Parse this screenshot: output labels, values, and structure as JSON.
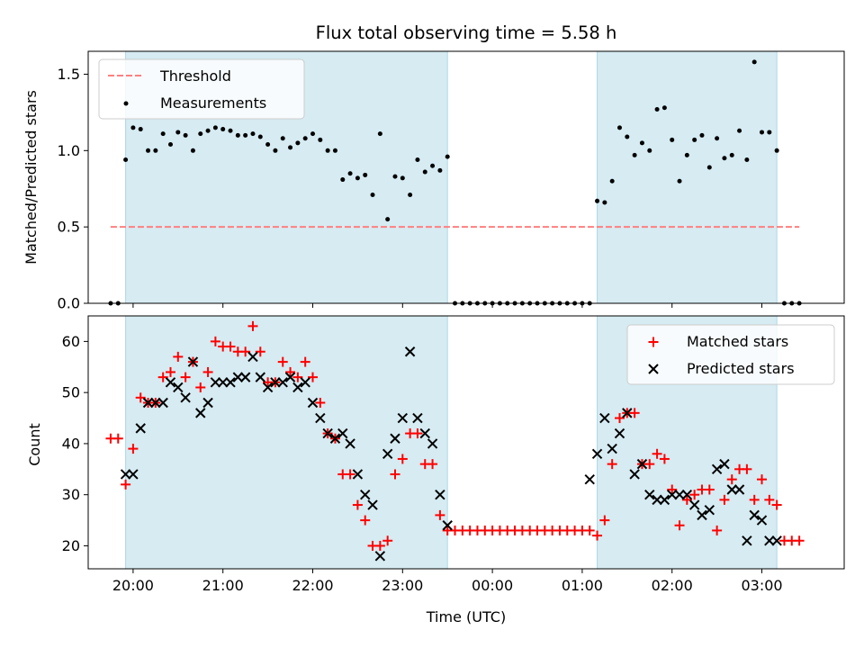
{
  "chart_data": [
    {
      "type": "scatter",
      "title": "Flux total observing time = 5.58 h",
      "xlabel": "",
      "ylabel": "Matched/Predicted stars",
      "ylim": [
        0.0,
        1.65
      ],
      "xlim": [
        "19:30",
        "03:55"
      ],
      "yticks": [
        0.0,
        0.5,
        1.0,
        1.5
      ],
      "ytick_labels": [
        "0.0",
        "0.5",
        "1.0",
        "1.5"
      ],
      "grid": false,
      "legend_position": "top-left",
      "legend": [
        {
          "name": "Threshold",
          "style": "dashed-line",
          "color": "#ff7f7f"
        },
        {
          "name": "Measurements",
          "style": "dot",
          "color": "#000000"
        }
      ],
      "shaded_intervals": [
        [
          "19:55",
          "23:30"
        ],
        [
          "01:10",
          "03:10"
        ]
      ],
      "threshold": {
        "name": "Threshold",
        "value": 0.5,
        "x_range": [
          "19:45",
          "03:25"
        ]
      },
      "series": [
        {
          "name": "Measurements",
          "x": [
            "19:45",
            "19:50",
            "19:55",
            "20:00",
            "20:05",
            "20:10",
            "20:15",
            "20:20",
            "20:25",
            "20:30",
            "20:35",
            "20:40",
            "20:45",
            "20:50",
            "20:55",
            "21:00",
            "21:05",
            "21:10",
            "21:15",
            "21:20",
            "21:25",
            "21:30",
            "21:35",
            "21:40",
            "21:45",
            "21:50",
            "21:55",
            "22:00",
            "22:05",
            "22:10",
            "22:15",
            "22:20",
            "22:25",
            "22:30",
            "22:35",
            "22:40",
            "22:45",
            "22:50",
            "22:55",
            "23:00",
            "23:05",
            "23:10",
            "23:15",
            "23:20",
            "23:25",
            "23:30",
            "23:35",
            "23:40",
            "23:45",
            "23:50",
            "23:55",
            "00:00",
            "00:05",
            "00:10",
            "00:15",
            "00:20",
            "00:25",
            "00:30",
            "00:35",
            "00:40",
            "00:45",
            "00:50",
            "00:55",
            "01:00",
            "01:05",
            "01:10",
            "01:15",
            "01:20",
            "01:25",
            "01:30",
            "01:35",
            "01:40",
            "01:45",
            "01:50",
            "01:55",
            "02:00",
            "02:05",
            "02:10",
            "02:15",
            "02:20",
            "02:25",
            "02:30",
            "02:35",
            "02:40",
            "02:45",
            "02:50",
            "02:55",
            "03:00",
            "03:05",
            "03:10",
            "03:15",
            "03:20",
            "03:25"
          ],
          "y": [
            0.0,
            0.0,
            0.94,
            1.15,
            1.14,
            1.0,
            1.0,
            1.11,
            1.04,
            1.12,
            1.1,
            1.0,
            1.11,
            1.13,
            1.15,
            1.14,
            1.13,
            1.1,
            1.1,
            1.11,
            1.09,
            1.04,
            1.0,
            1.08,
            1.02,
            1.05,
            1.08,
            1.11,
            1.07,
            1.0,
            1.0,
            0.81,
            0.85,
            0.82,
            0.84,
            0.71,
            1.11,
            0.55,
            0.83,
            0.82,
            0.71,
            0.94,
            0.86,
            0.9,
            0.87,
            0.96,
            0.0,
            0.0,
            0.0,
            0.0,
            0.0,
            0.0,
            0.0,
            0.0,
            0.0,
            0.0,
            0.0,
            0.0,
            0.0,
            0.0,
            0.0,
            0.0,
            0.0,
            0.0,
            0.0,
            0.67,
            0.66,
            0.8,
            1.15,
            1.09,
            0.97,
            1.05,
            1.0,
            1.27,
            1.28,
            1.07,
            0.8,
            0.97,
            1.07,
            1.1,
            0.89,
            1.08,
            0.95,
            0.97,
            1.13,
            0.94,
            1.58,
            1.12,
            1.12,
            1.0,
            0.0,
            0.0,
            0.0
          ]
        }
      ]
    },
    {
      "type": "scatter",
      "title": "",
      "xlabel": "Time (UTC)",
      "ylabel": "Count",
      "ylim": [
        15.5,
        65
      ],
      "xlim": [
        "19:30",
        "03:55"
      ],
      "yticks": [
        20,
        30,
        40,
        50,
        60
      ],
      "ytick_labels": [
        "20",
        "30",
        "40",
        "50",
        "60"
      ],
      "xticks": [
        "20:00",
        "21:00",
        "22:00",
        "23:00",
        "00:00",
        "01:00",
        "02:00",
        "03:00"
      ],
      "grid": false,
      "legend_position": "top-right",
      "legend": [
        {
          "name": "Matched stars",
          "marker": "+",
          "color": "#ff0000"
        },
        {
          "name": "Predicted stars",
          "marker": "x",
          "color": "#000000"
        }
      ],
      "shaded_intervals": [
        [
          "19:55",
          "23:30"
        ],
        [
          "01:10",
          "03:10"
        ]
      ],
      "series": [
        {
          "name": "Matched stars",
          "marker": "+",
          "color": "#ff0000",
          "x": [
            "19:45",
            "19:50",
            "19:55",
            "20:00",
            "20:05",
            "20:10",
            "20:15",
            "20:20",
            "20:25",
            "20:30",
            "20:35",
            "20:40",
            "20:45",
            "20:50",
            "20:55",
            "21:00",
            "21:05",
            "21:10",
            "21:15",
            "21:20",
            "21:25",
            "21:30",
            "21:35",
            "21:40",
            "21:45",
            "21:50",
            "21:55",
            "22:00",
            "22:05",
            "22:10",
            "22:15",
            "22:20",
            "22:25",
            "22:30",
            "22:35",
            "22:40",
            "22:45",
            "22:50",
            "22:55",
            "23:00",
            "23:05",
            "23:10",
            "23:15",
            "23:20",
            "23:25",
            "23:30",
            "23:35",
            "23:40",
            "23:45",
            "23:50",
            "23:55",
            "00:00",
            "00:05",
            "00:10",
            "00:15",
            "00:20",
            "00:25",
            "00:30",
            "00:35",
            "00:40",
            "00:45",
            "00:50",
            "00:55",
            "01:00",
            "01:05",
            "01:10",
            "01:15",
            "01:20",
            "01:25",
            "01:30",
            "01:35",
            "01:40",
            "01:45",
            "01:50",
            "01:55",
            "02:00",
            "02:05",
            "02:10",
            "02:15",
            "02:20",
            "02:25",
            "02:30",
            "02:35",
            "02:40",
            "02:45",
            "02:50",
            "02:55",
            "03:00",
            "03:05",
            "03:10",
            "03:15",
            "03:20",
            "03:25"
          ],
          "y": [
            41,
            41,
            32,
            39,
            49,
            48,
            48,
            53,
            54,
            57,
            53,
            56,
            51,
            54,
            60,
            59,
            59,
            58,
            58,
            63,
            58,
            52,
            52,
            56,
            54,
            53,
            56,
            53,
            48,
            42,
            41,
            34,
            34,
            28,
            25,
            20,
            20,
            21,
            34,
            37,
            42,
            42,
            36,
            36,
            26,
            23,
            23,
            23,
            23,
            23,
            23,
            23,
            23,
            23,
            23,
            23,
            23,
            23,
            23,
            23,
            23,
            23,
            23,
            23,
            23,
            22,
            25,
            36,
            45,
            46,
            46,
            36,
            36,
            38,
            37,
            31,
            24,
            29,
            30,
            31,
            31,
            23,
            29,
            33,
            35,
            35,
            29,
            33,
            29,
            28,
            21,
            21,
            21
          ]
        },
        {
          "name": "Predicted stars",
          "marker": "x",
          "color": "#000000",
          "x": [
            "19:55",
            "20:00",
            "20:05",
            "20:10",
            "20:15",
            "20:20",
            "20:25",
            "20:30",
            "20:35",
            "20:40",
            "20:45",
            "20:50",
            "20:55",
            "21:00",
            "21:05",
            "21:10",
            "21:15",
            "21:20",
            "21:25",
            "21:30",
            "21:35",
            "21:40",
            "21:45",
            "21:50",
            "21:55",
            "22:00",
            "22:05",
            "22:10",
            "22:15",
            "22:20",
            "22:25",
            "22:30",
            "22:35",
            "22:40",
            "22:45",
            "22:50",
            "22:55",
            "23:00",
            "23:05",
            "23:10",
            "23:15",
            "23:20",
            "23:25",
            "23:30",
            "01:05",
            "01:10",
            "01:15",
            "01:20",
            "01:25",
            "01:30",
            "01:35",
            "01:40",
            "01:45",
            "01:50",
            "01:55",
            "02:00",
            "02:05",
            "02:10",
            "02:15",
            "02:20",
            "02:25",
            "02:30",
            "02:35",
            "02:40",
            "02:45",
            "02:50",
            "02:55",
            "03:00",
            "03:05",
            "03:10"
          ],
          "y": [
            34,
            34,
            43,
            48,
            48,
            48,
            52,
            51,
            49,
            56,
            46,
            48,
            52,
            52,
            52,
            53,
            53,
            57,
            53,
            51,
            52,
            52,
            53,
            51,
            52,
            48,
            45,
            42,
            41,
            42,
            40,
            34,
            30,
            28,
            18,
            38,
            41,
            45,
            58,
            45,
            42,
            40,
            30,
            24,
            33,
            38,
            45,
            39,
            42,
            46,
            34,
            36,
            30,
            29,
            29,
            30,
            30,
            30,
            28,
            26,
            27,
            35,
            36,
            31,
            31,
            21,
            26,
            25,
            21,
            21
          ]
        }
      ]
    }
  ]
}
